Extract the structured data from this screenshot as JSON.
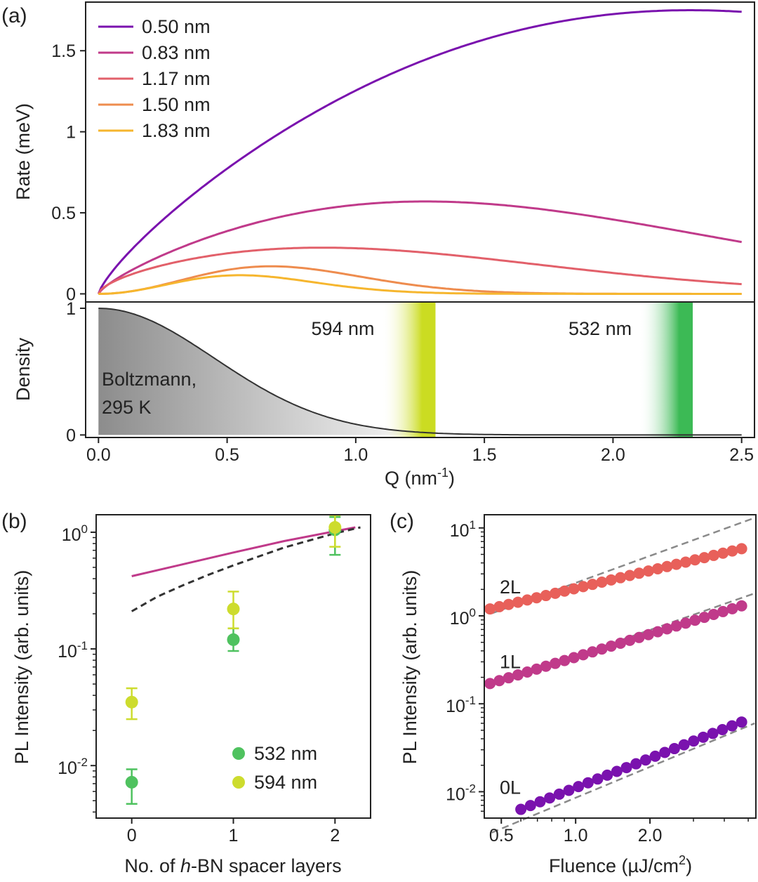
{
  "chart_data": [
    {
      "id": "a_top",
      "panel_label": "(a)",
      "type": "line",
      "ylabel": "Rate (meV)",
      "ylim": [
        -0.05,
        1.8
      ],
      "yticks": [
        "0",
        "0.5",
        "1",
        "1.5"
      ],
      "ytick_values": [
        0,
        0.5,
        1,
        1.5
      ],
      "xlim": [
        -0.05,
        2.55
      ],
      "legend_position": "top-left",
      "series": [
        {
          "name": "0.50 nm",
          "color": "#7a12ae",
          "peak": 1.75,
          "peak_x": 2.3,
          "end": 1.74
        },
        {
          "name": "0.83 nm",
          "color": "#c03a8a",
          "peak": 0.57,
          "peak_x": 1.27,
          "end": 0.32
        },
        {
          "name": "1.17 nm",
          "color": "#e2606a",
          "peak": 0.285,
          "peak_x": 0.87,
          "end": 0.06
        },
        {
          "name": "1.50 nm",
          "color": "#ee8c4e",
          "peak": 0.17,
          "peak_x": 0.67,
          "end": 0.01
        },
        {
          "name": "1.83 nm",
          "color": "#f6b62e",
          "peak": 0.115,
          "peak_x": 0.55,
          "end": 0.005
        }
      ]
    },
    {
      "id": "a_bottom",
      "type": "area",
      "ylabel": "Density",
      "xlabel": "Q (nm",
      "xlabel_sup": "-1",
      "xlabel_tail": ")",
      "xlim": [
        -0.05,
        2.55
      ],
      "ylim": [
        -0.02,
        1.05
      ],
      "xticks": [
        "0.0",
        "0.5",
        "1.0",
        "1.5",
        "2.0",
        "2.5"
      ],
      "xtick_values": [
        0,
        0.5,
        1.0,
        1.5,
        2.0,
        2.5
      ],
      "yticks": [
        "0",
        "1"
      ],
      "ytick_values": [
        0,
        1
      ],
      "boltzmann_label": [
        "Boltzmann,",
        "295 K"
      ],
      "boltzmann_sigma": 0.45,
      "bands": [
        {
          "label": "594 nm",
          "x_start": 1.1,
          "x_end": 1.31,
          "color": "#cbdc22"
        },
        {
          "label": "532 nm",
          "x_start": 2.1,
          "x_end": 2.31,
          "color": "#3cba55"
        }
      ]
    },
    {
      "id": "b",
      "panel_label": "(b)",
      "type": "scatter",
      "ylabel": "PL Intensity (arb. units)",
      "xlabel_parts": [
        "No. of ",
        "h",
        "-BN spacer layers"
      ],
      "xlim": [
        -0.35,
        2.35
      ],
      "ylim_log10": [
        -2.45,
        0.15
      ],
      "xticks": [
        "0",
        "1",
        "2"
      ],
      "xtick_values": [
        0,
        1,
        2
      ],
      "yticks": [
        {
          "base": "10",
          "exp": "0",
          "v": 0
        },
        {
          "base": "10",
          "exp": "-1",
          "v": -1
        },
        {
          "base": "10",
          "exp": "-2",
          "v": -2
        }
      ],
      "legend_position": "bottom-right",
      "series": [
        {
          "name": "532 nm",
          "color": "#4fc25f",
          "x": [
            0,
            1,
            2
          ],
          "y": [
            0.0072,
            0.12,
            1.05
          ],
          "err_low": [
            0.0047,
            0.096,
            0.64
          ],
          "err_high": [
            0.0093,
            0.15,
            1.35
          ]
        },
        {
          "name": "594 nm",
          "color": "#cddc2e",
          "x": [
            0,
            1,
            2
          ],
          "y": [
            0.035,
            0.22,
            1.1
          ],
          "err_low": [
            0.025,
            0.15,
            0.75
          ],
          "err_high": [
            0.046,
            0.31,
            1.4
          ]
        }
      ],
      "model_solid": {
        "color": "#c03a8a",
        "x": [
          0,
          0.5,
          1,
          1.5,
          2,
          2.2
        ],
        "y": [
          0.42,
          0.53,
          0.67,
          0.84,
          1.02,
          1.1
        ]
      },
      "model_dashed": {
        "color": "#333333",
        "x": [
          0,
          0.25,
          0.5,
          0.75,
          1,
          1.5,
          2,
          2.25
        ],
        "y": [
          0.21,
          0.28,
          0.35,
          0.43,
          0.52,
          0.74,
          0.98,
          1.1
        ]
      }
    },
    {
      "id": "c",
      "panel_label": "(c)",
      "type": "scatter",
      "ylabel": "PL Intensity (arb. units)",
      "xlabel": "Fluence (µJ/cm",
      "xlabel_sup": "2",
      "xlabel_tail": ")",
      "xlim_log10": [
        -0.37,
        0.73
      ],
      "ylim_log10": [
        -2.3,
        1.15
      ],
      "xticks": [
        "0.5",
        "1.0",
        "2.0"
      ],
      "xtick_values": [
        0.5,
        1.0,
        2.0
      ],
      "yticks": [
        {
          "base": "10",
          "exp": "1",
          "v": 1
        },
        {
          "base": "10",
          "exp": "0",
          "v": 0
        },
        {
          "base": "10",
          "exp": "-1",
          "v": -1
        },
        {
          "base": "10",
          "exp": "-2",
          "v": -2
        }
      ],
      "series": [
        {
          "name": "2L",
          "color": "#e8605a",
          "x_start": 0.45,
          "x_end": 4.7,
          "y_start": 1.2,
          "y_end": 5.8,
          "points": 28,
          "fit_y_start": 1.05,
          "fit_y_end": 11.5
        },
        {
          "name": "1L",
          "color": "#c03a8a",
          "x_start": 0.45,
          "x_end": 4.7,
          "y_start": 0.17,
          "y_end": 1.3,
          "points": 28,
          "fit_y_start": 0.16,
          "fit_y_end": 1.6
        },
        {
          "name": "0L",
          "color": "#7a12ae",
          "x_start": 0.6,
          "x_end": 4.7,
          "y_start": 0.0063,
          "y_end": 0.062,
          "points": 24,
          "fit_y_start": 0.0047,
          "fit_y_end": 0.052
        }
      ]
    }
  ]
}
